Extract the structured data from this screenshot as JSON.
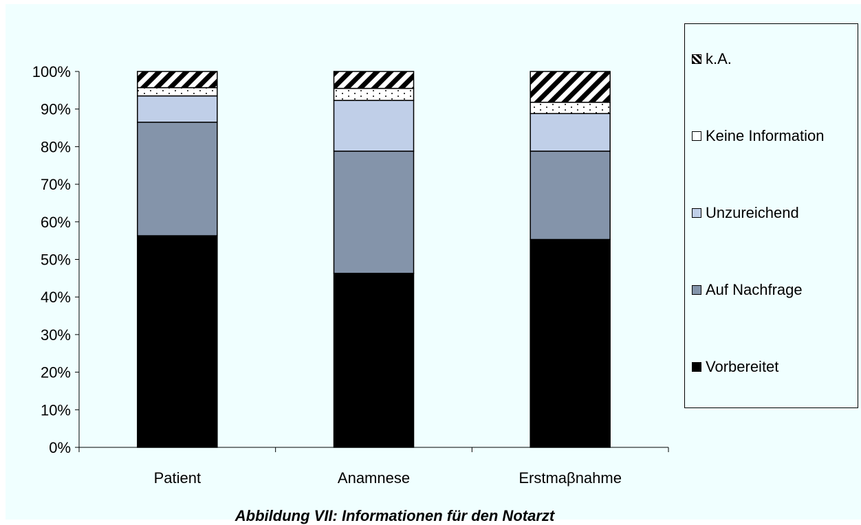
{
  "chart_data": {
    "type": "bar",
    "stacked": true,
    "categories": [
      "Patient",
      "Anamnese",
      "Erstmaβnahme"
    ],
    "series": [
      {
        "name": "Vorbereitet",
        "values": [
          56.3,
          46.3,
          55.3
        ],
        "color": "#000000",
        "pattern": "solid"
      },
      {
        "name": "Auf Nachfrage",
        "values": [
          30.2,
          32.5,
          23.5
        ],
        "color": "#8494aa",
        "pattern": "solid"
      },
      {
        "name": "Unzureichend",
        "values": [
          7.0,
          13.5,
          10.0
        ],
        "color": "#c0cfe8",
        "pattern": "solid"
      },
      {
        "name": "Keine Information",
        "values": [
          2.2,
          3.2,
          3.0
        ],
        "color": "#ffffff",
        "pattern": "dots"
      },
      {
        "name": "k.A.",
        "values": [
          4.3,
          4.5,
          8.2
        ],
        "color": "#ffffff",
        "pattern": "diagonal-stripes"
      }
    ],
    "y_ticks": [
      "0%",
      "10%",
      "20%",
      "30%",
      "40%",
      "50%",
      "60%",
      "70%",
      "80%",
      "90%",
      "100%"
    ],
    "ylim": [
      0,
      100
    ],
    "xlabel": "",
    "ylabel": "",
    "grid": false,
    "legend_position": "right",
    "caption": "Abbildung VII: Informationen für den Notarzt"
  }
}
